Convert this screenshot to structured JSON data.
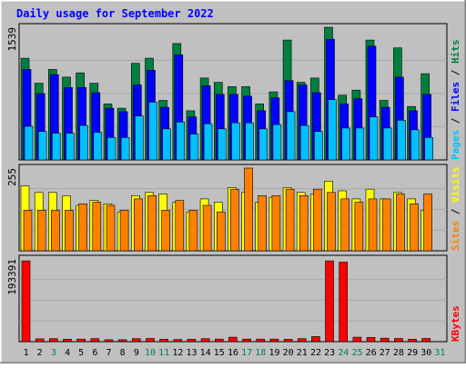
{
  "title": "Daily usage for September 2022",
  "colors": {
    "background": "#c0c0c0",
    "plot_background": "#c0c0c0",
    "frame_light": "#ffffff",
    "frame_dark": "#808080",
    "title_text": "#0000ff",
    "hits": "#008040",
    "files": "#0000ff",
    "pages": "#00c0ff",
    "visits": "#ffff00",
    "sites": "#ff8000",
    "kbytes": "#ff0000",
    "weekday_label": "#000000",
    "weekend_label": "#008040"
  },
  "chart_data": [
    {
      "type": "bar",
      "panel": "hits-files-pages",
      "ymax_label": "1539",
      "ylim": [
        0,
        1539
      ],
      "legend": [
        "Pages",
        "Files",
        "Hits"
      ],
      "legend_separator": "/",
      "legend_placement": "right",
      "categories": [
        "1",
        "2",
        "3",
        "4",
        "5",
        "6",
        "7",
        "8",
        "9",
        "10",
        "11",
        "12",
        "13",
        "14",
        "15",
        "16",
        "17",
        "18",
        "19",
        "20",
        "21",
        "22",
        "23",
        "24",
        "25",
        "26",
        "27",
        "28",
        "29",
        "30",
        "31"
      ],
      "series": [
        {
          "name": "Hits",
          "values": [
            1180,
            890,
            1050,
            960,
            1010,
            890,
            650,
            600,
            1120,
            1180,
            690,
            1350,
            570,
            950,
            900,
            850,
            850,
            650,
            790,
            1390,
            900,
            950,
            1539,
            750,
            810,
            1390,
            690,
            1300,
            620,
            1000,
            0
          ]
        },
        {
          "name": "Files",
          "values": [
            1050,
            770,
            990,
            840,
            840,
            780,
            600,
            560,
            870,
            1040,
            610,
            1220,
            500,
            860,
            760,
            760,
            740,
            570,
            720,
            920,
            870,
            780,
            1400,
            650,
            710,
            1320,
            610,
            960,
            570,
            760,
            0
          ]
        },
        {
          "name": "Pages",
          "values": [
            390,
            330,
            310,
            310,
            400,
            320,
            260,
            260,
            510,
            670,
            360,
            440,
            300,
            420,
            360,
            430,
            430,
            360,
            410,
            560,
            400,
            330,
            700,
            370,
            370,
            500,
            370,
            460,
            350,
            260,
            0
          ]
        }
      ]
    },
    {
      "type": "bar",
      "panel": "visits-sites",
      "ymax_label": "255",
      "ylim": [
        0,
        255
      ],
      "legend": [
        "Sites",
        "Visits"
      ],
      "legend_separator": "/",
      "legend_placement": "right",
      "categories": [
        "1",
        "2",
        "3",
        "4",
        "5",
        "6",
        "7",
        "8",
        "9",
        "10",
        "11",
        "12",
        "13",
        "14",
        "15",
        "16",
        "17",
        "18",
        "19",
        "20",
        "21",
        "22",
        "23",
        "24",
        "25",
        "26",
        "27",
        "28",
        "29",
        "30",
        "31"
      ],
      "series": [
        {
          "name": "Visits",
          "values": [
            200,
            180,
            180,
            170,
            140,
            155,
            145,
            120,
            170,
            180,
            175,
            150,
            120,
            160,
            150,
            195,
            180,
            150,
            165,
            195,
            180,
            175,
            215,
            185,
            160,
            190,
            160,
            180,
            160,
            125,
            0
          ]
        },
        {
          "name": "Sites",
          "values": [
            125,
            125,
            125,
            125,
            145,
            150,
            140,
            125,
            160,
            170,
            125,
            155,
            125,
            140,
            120,
            190,
            255,
            170,
            170,
            190,
            170,
            190,
            180,
            160,
            150,
            160,
            160,
            175,
            145,
            175,
            0
          ]
        }
      ]
    },
    {
      "type": "bar",
      "panel": "kbytes",
      "ymax_label": "193391",
      "ylim": [
        0,
        193391
      ],
      "legend": [
        "KBytes"
      ],
      "legend_placement": "right",
      "categories": [
        "1",
        "2",
        "3",
        "4",
        "5",
        "6",
        "7",
        "8",
        "9",
        "10",
        "11",
        "12",
        "13",
        "14",
        "15",
        "16",
        "17",
        "18",
        "19",
        "20",
        "21",
        "22",
        "23",
        "24",
        "25",
        "26",
        "27",
        "28",
        "29",
        "30",
        "31"
      ],
      "series": [
        {
          "name": "KBytes",
          "values": [
            189000,
            6500,
            7000,
            5500,
            6000,
            7000,
            4500,
            4500,
            7000,
            7500,
            5500,
            5000,
            5500,
            7000,
            6000,
            10500,
            6000,
            6000,
            6000,
            5500,
            7000,
            12000,
            189000,
            186000,
            10500,
            10000,
            8000,
            7500,
            5500,
            7500,
            0
          ]
        }
      ]
    }
  ],
  "weekend_days": [
    3,
    10,
    11,
    17,
    18,
    24,
    25,
    31
  ]
}
